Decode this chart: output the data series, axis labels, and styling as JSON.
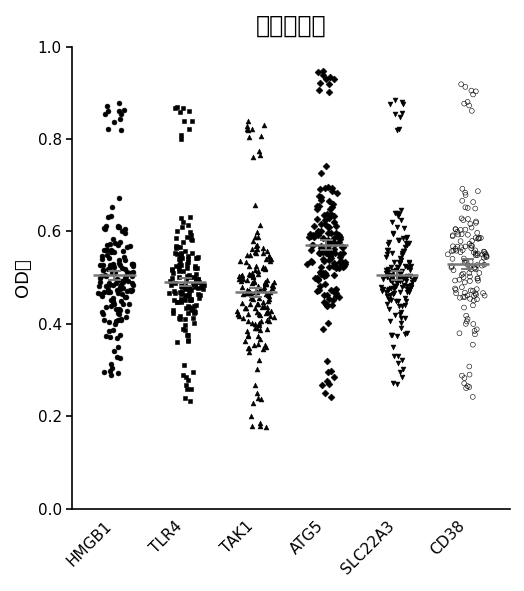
{
  "title": "食管麞癌组",
  "ylabel": "OD値",
  "groups": [
    "HMGB1",
    "TLR4",
    "TAK1",
    "ATG5",
    "SLC22A3",
    "CD38"
  ],
  "markers": [
    "o",
    "s",
    "^",
    "D",
    "v",
    "o"
  ],
  "filled": [
    true,
    true,
    true,
    true,
    true,
    false
  ],
  "ylim": [
    0.0,
    1.0
  ],
  "yticks": [
    0.0,
    0.2,
    0.4,
    0.6,
    0.8,
    1.0
  ],
  "means": [
    0.505,
    0.49,
    0.468,
    0.57,
    0.505,
    0.53
  ],
  "sems": [
    0.01,
    0.009,
    0.009,
    0.011,
    0.01,
    0.011
  ],
  "n_points": [
    160,
    155,
    160,
    155,
    150,
    145
  ],
  "seeds": [
    42,
    43,
    44,
    45,
    46,
    47
  ],
  "core_spread": [
    0.068,
    0.062,
    0.065,
    0.07,
    0.065,
    0.068
  ],
  "outlier_lows": [
    0.27,
    0.23,
    0.17,
    0.24,
    0.27,
    0.24
  ],
  "outlier_highs": [
    0.88,
    0.87,
    0.84,
    0.95,
    0.89,
    0.92
  ],
  "marker_size": 3.5,
  "mean_bar_color": "#777777",
  "point_color": "#000000",
  "background_color": "#ffffff",
  "title_fontsize": 17,
  "ylabel_fontsize": 13,
  "tick_fontsize": 11,
  "figsize": [
    5.24,
    5.91
  ],
  "dpi": 100
}
